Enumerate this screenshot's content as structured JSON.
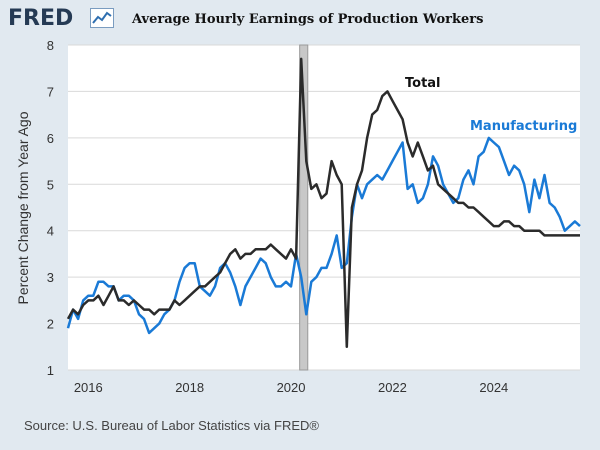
{
  "header": {
    "logo": "FRED",
    "title": "Average Hourly Earnings of Production Workers"
  },
  "icons": {
    "logo_chart": "trend-chart-icon"
  },
  "colors": {
    "total": "#2b2b2b",
    "manufacturing": "#1a7ad6",
    "recession": "#b5b5b5"
  },
  "footer": {
    "source": "Source: U.S. Bureau of Labor Statistics via FRED®"
  },
  "chart_data": {
    "type": "line",
    "title": "Average Hourly Earnings of Production Workers",
    "xlabel": "",
    "ylabel": "Percent Change from Year Ago",
    "xlim": [
      2015.6,
      2025.7
    ],
    "ylim": [
      1,
      8
    ],
    "xticks": [
      2016,
      2018,
      2020,
      2022,
      2024
    ],
    "xtick_labels": [
      "2016",
      "2018",
      "2020",
      "2022",
      "2024"
    ],
    "yticks": [
      1,
      2,
      3,
      4,
      5,
      6,
      7,
      8
    ],
    "ytick_labels": [
      "1",
      "2",
      "3",
      "4",
      "5",
      "6",
      "7",
      "8"
    ],
    "recession": [
      2020.17,
      2020.33
    ],
    "series": [
      {
        "name": "Total",
        "label": "Total",
        "x": [
          2015.6,
          2015.7,
          2015.8,
          2015.9,
          2016.0,
          2016.1,
          2016.2,
          2016.3,
          2016.4,
          2016.5,
          2016.6,
          2016.7,
          2016.8,
          2016.9,
          2017.0,
          2017.1,
          2017.2,
          2017.3,
          2017.4,
          2017.5,
          2017.6,
          2017.7,
          2017.8,
          2017.9,
          2018.0,
          2018.1,
          2018.2,
          2018.3,
          2018.4,
          2018.5,
          2018.6,
          2018.7,
          2018.8,
          2018.9,
          2019.0,
          2019.1,
          2019.2,
          2019.3,
          2019.4,
          2019.5,
          2019.6,
          2019.7,
          2019.8,
          2019.9,
          2020.0,
          2020.1,
          2020.2,
          2020.3,
          2020.4,
          2020.5,
          2020.6,
          2020.7,
          2020.8,
          2020.9,
          2021.0,
          2021.1,
          2021.2,
          2021.3,
          2021.4,
          2021.5,
          2021.6,
          2021.7,
          2021.8,
          2021.9,
          2022.0,
          2022.1,
          2022.2,
          2022.3,
          2022.4,
          2022.5,
          2022.6,
          2022.7,
          2022.8,
          2022.9,
          2023.0,
          2023.1,
          2023.2,
          2023.3,
          2023.4,
          2023.5,
          2023.6,
          2023.7,
          2023.8,
          2023.9,
          2024.0,
          2024.1,
          2024.2,
          2024.3,
          2024.4,
          2024.5,
          2024.6,
          2024.7,
          2024.8,
          2024.9,
          2025.0,
          2025.1,
          2025.2,
          2025.3,
          2025.4,
          2025.5,
          2025.6,
          2025.7
        ],
        "values": [
          2.1,
          2.3,
          2.2,
          2.4,
          2.5,
          2.5,
          2.6,
          2.4,
          2.6,
          2.8,
          2.5,
          2.5,
          2.4,
          2.5,
          2.4,
          2.3,
          2.3,
          2.2,
          2.3,
          2.3,
          2.3,
          2.5,
          2.4,
          2.5,
          2.6,
          2.7,
          2.8,
          2.8,
          2.9,
          3.0,
          3.1,
          3.3,
          3.5,
          3.6,
          3.4,
          3.5,
          3.5,
          3.6,
          3.6,
          3.6,
          3.7,
          3.6,
          3.5,
          3.4,
          3.6,
          3.4,
          7.7,
          5.5,
          4.9,
          5.0,
          4.7,
          4.8,
          5.5,
          5.2,
          5.0,
          1.5,
          4.5,
          5.0,
          5.3,
          6.0,
          6.5,
          6.6,
          6.9,
          7.0,
          6.8,
          6.6,
          6.4,
          5.9,
          5.6,
          5.9,
          5.6,
          5.3,
          5.4,
          5.0,
          4.9,
          4.8,
          4.7,
          4.6,
          4.6,
          4.5,
          4.5,
          4.4,
          4.3,
          4.2,
          4.1,
          4.1,
          4.2,
          4.2,
          4.1,
          4.1,
          4.0,
          4.0,
          4.0,
          4.0,
          3.9,
          3.9,
          3.9,
          3.9,
          3.9,
          3.9,
          3.9,
          3.9
        ],
        "color": "#2b2b2b"
      },
      {
        "name": "Manufacturing",
        "label": "Manufacturing",
        "x": [
          2015.6,
          2015.7,
          2015.8,
          2015.9,
          2016.0,
          2016.1,
          2016.2,
          2016.3,
          2016.4,
          2016.5,
          2016.6,
          2016.7,
          2016.8,
          2016.9,
          2017.0,
          2017.1,
          2017.2,
          2017.3,
          2017.4,
          2017.5,
          2017.6,
          2017.7,
          2017.8,
          2017.9,
          2018.0,
          2018.1,
          2018.2,
          2018.3,
          2018.4,
          2018.5,
          2018.6,
          2018.7,
          2018.8,
          2018.9,
          2019.0,
          2019.1,
          2019.2,
          2019.3,
          2019.4,
          2019.5,
          2019.6,
          2019.7,
          2019.8,
          2019.9,
          2020.0,
          2020.1,
          2020.2,
          2020.3,
          2020.4,
          2020.5,
          2020.6,
          2020.7,
          2020.8,
          2020.9,
          2021.0,
          2021.1,
          2021.2,
          2021.3,
          2021.4,
          2021.5,
          2021.6,
          2021.7,
          2021.8,
          2021.9,
          2022.0,
          2022.1,
          2022.2,
          2022.3,
          2022.4,
          2022.5,
          2022.6,
          2022.7,
          2022.8,
          2022.9,
          2023.0,
          2023.1,
          2023.2,
          2023.3,
          2023.4,
          2023.5,
          2023.6,
          2023.7,
          2023.8,
          2023.9,
          2024.0,
          2024.1,
          2024.2,
          2024.3,
          2024.4,
          2024.5,
          2024.6,
          2024.7,
          2024.8,
          2024.9,
          2025.0,
          2025.1,
          2025.2,
          2025.3,
          2025.4,
          2025.5,
          2025.6,
          2025.7
        ],
        "values": [
          1.9,
          2.3,
          2.1,
          2.5,
          2.6,
          2.6,
          2.9,
          2.9,
          2.8,
          2.8,
          2.5,
          2.6,
          2.6,
          2.5,
          2.2,
          2.1,
          1.8,
          1.9,
          2.0,
          2.2,
          2.3,
          2.5,
          2.9,
          3.2,
          3.3,
          3.3,
          2.8,
          2.7,
          2.6,
          2.8,
          3.2,
          3.3,
          3.1,
          2.8,
          2.4,
          2.8,
          3.0,
          3.2,
          3.4,
          3.3,
          3.0,
          2.8,
          2.8,
          2.9,
          2.8,
          3.5,
          3.0,
          2.2,
          2.9,
          3.0,
          3.2,
          3.2,
          3.5,
          3.9,
          3.2,
          3.3,
          4.3,
          5.0,
          4.7,
          5.0,
          5.1,
          5.2,
          5.1,
          5.3,
          5.5,
          5.7,
          5.9,
          4.9,
          5.0,
          4.6,
          4.7,
          5.0,
          5.6,
          5.4,
          5.0,
          4.8,
          4.6,
          4.7,
          5.1,
          5.3,
          5.0,
          5.6,
          5.7,
          6.0,
          5.9,
          5.8,
          5.5,
          5.2,
          5.4,
          5.3,
          5.0,
          4.4,
          5.1,
          4.7,
          5.2,
          4.6,
          4.5,
          4.3,
          4.0,
          4.1,
          4.2,
          4.1
        ],
        "color": "#1a7ad6"
      }
    ],
    "annotations": [
      {
        "text": "Total",
        "series": "Total"
      },
      {
        "text": "Manufacturing",
        "series": "Manufacturing"
      }
    ]
  }
}
